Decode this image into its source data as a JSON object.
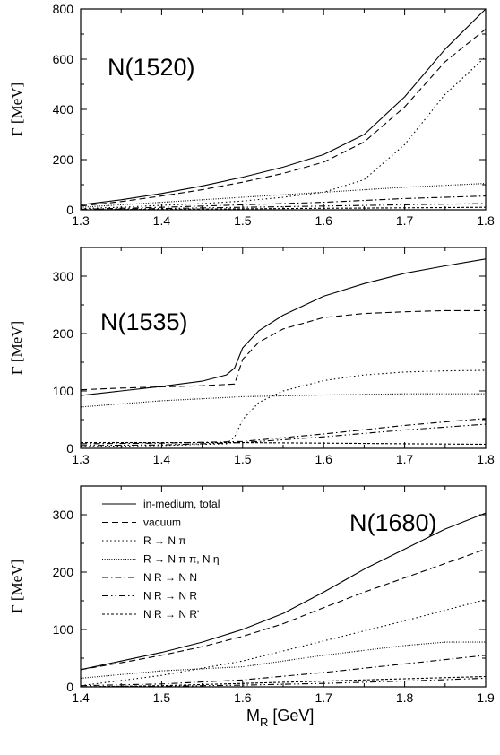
{
  "figure": {
    "xlabel": "M",
    "xlabel_sub": "R",
    "xlabel_unit": " [GeV]"
  },
  "chart_data": [
    {
      "type": "line",
      "title": "N(1520)",
      "ylabel": "Γ [MeV]",
      "xlim": [
        1.3,
        1.8
      ],
      "ylim": [
        0,
        800
      ],
      "xticks": [
        "1.3",
        "1.4",
        "1.5",
        "1.6",
        "1.7",
        "1.8"
      ],
      "yticks": [
        "0",
        "200",
        "400",
        "600",
        "800"
      ],
      "grid": false,
      "series": [
        {
          "style": "solid",
          "x": [
            1.3,
            1.35,
            1.4,
            1.45,
            1.5,
            1.55,
            1.6,
            1.65,
            1.7,
            1.75,
            1.8
          ],
          "y": [
            20,
            40,
            65,
            95,
            130,
            170,
            220,
            300,
            450,
            640,
            800
          ]
        },
        {
          "style": "dash",
          "x": [
            1.3,
            1.35,
            1.4,
            1.45,
            1.5,
            1.55,
            1.6,
            1.65,
            1.7,
            1.75,
            1.8
          ],
          "y": [
            15,
            33,
            55,
            80,
            110,
            145,
            190,
            270,
            410,
            590,
            720
          ]
        },
        {
          "style": "dot",
          "x": [
            1.3,
            1.35,
            1.4,
            1.45,
            1.5,
            1.55,
            1.6,
            1.65,
            1.7,
            1.75,
            1.8
          ],
          "y": [
            5,
            10,
            18,
            25,
            35,
            50,
            70,
            120,
            260,
            460,
            610
          ]
        },
        {
          "style": "densedot",
          "x": [
            1.3,
            1.4,
            1.5,
            1.6,
            1.7,
            1.8
          ],
          "y": [
            10,
            30,
            50,
            70,
            90,
            105
          ]
        },
        {
          "style": "dashdot",
          "x": [
            1.3,
            1.4,
            1.5,
            1.6,
            1.7,
            1.8
          ],
          "y": [
            2,
            10,
            20,
            30,
            45,
            55
          ]
        },
        {
          "style": "dashdotdot",
          "x": [
            1.3,
            1.4,
            1.5,
            1.6,
            1.7,
            1.8
          ],
          "y": [
            1,
            5,
            10,
            15,
            20,
            25
          ]
        },
        {
          "style": "shortdash",
          "x": [
            1.3,
            1.4,
            1.5,
            1.6,
            1.7,
            1.8
          ],
          "y": [
            0,
            2,
            4,
            6,
            8,
            10
          ]
        }
      ]
    },
    {
      "type": "line",
      "title": "N(1535)",
      "ylabel": "Γ [MeV]",
      "xlim": [
        1.3,
        1.8
      ],
      "ylim": [
        0,
        350
      ],
      "xticks": [
        "1.3",
        "1.4",
        "1.5",
        "1.6",
        "1.7",
        "1.8"
      ],
      "yticks": [
        "0",
        "100",
        "200",
        "300"
      ],
      "grid": false,
      "series": [
        {
          "style": "solid",
          "x": [
            1.3,
            1.35,
            1.4,
            1.45,
            1.48,
            1.49,
            1.5,
            1.52,
            1.55,
            1.6,
            1.65,
            1.7,
            1.75,
            1.8
          ],
          "y": [
            92,
            100,
            108,
            117,
            128,
            140,
            175,
            205,
            232,
            265,
            287,
            305,
            318,
            330
          ]
        },
        {
          "style": "dash",
          "x": [
            1.3,
            1.35,
            1.4,
            1.45,
            1.49,
            1.5,
            1.52,
            1.55,
            1.6,
            1.65,
            1.7,
            1.75,
            1.8
          ],
          "y": [
            102,
            105,
            107,
            109,
            112,
            155,
            185,
            208,
            228,
            235,
            238,
            240,
            240
          ]
        },
        {
          "style": "densedot",
          "x": [
            1.3,
            1.4,
            1.5,
            1.6,
            1.7,
            1.8
          ],
          "y": [
            72,
            83,
            90,
            93,
            95,
            95
          ]
        },
        {
          "style": "dot",
          "x": [
            1.3,
            1.4,
            1.48,
            1.49,
            1.5,
            1.52,
            1.55,
            1.6,
            1.65,
            1.7,
            1.75,
            1.8
          ],
          "y": [
            3,
            5,
            8,
            20,
            50,
            80,
            100,
            118,
            128,
            133,
            135,
            136
          ]
        },
        {
          "style": "dashdot",
          "x": [
            1.3,
            1.4,
            1.5,
            1.6,
            1.7,
            1.8
          ],
          "y": [
            8,
            9,
            12,
            25,
            40,
            52
          ]
        },
        {
          "style": "dashdotdot",
          "x": [
            1.3,
            1.4,
            1.5,
            1.6,
            1.7,
            1.8
          ],
          "y": [
            5,
            6,
            10,
            20,
            32,
            42
          ]
        },
        {
          "style": "shortdash",
          "x": [
            1.3,
            1.4,
            1.5,
            1.6,
            1.7,
            1.8
          ],
          "y": [
            10,
            10,
            10,
            9,
            8,
            7
          ]
        }
      ]
    },
    {
      "type": "line",
      "title": "N(1680)",
      "ylabel": "Γ [MeV]",
      "xlim": [
        1.4,
        1.9
      ],
      "ylim": [
        0,
        350
      ],
      "xticks": [
        "1.4",
        "1.5",
        "1.6",
        "1.7",
        "1.8",
        "1.9"
      ],
      "yticks": [
        "0",
        "100",
        "200",
        "300"
      ],
      "grid": false,
      "legend_position": "top-left",
      "legend": [
        {
          "label": "in-medium, total",
          "style": "solid"
        },
        {
          "label": "vacuum",
          "style": "dash"
        },
        {
          "label": "R → N π",
          "style": "dot"
        },
        {
          "label": "R → N π π, N η",
          "style": "densedot"
        },
        {
          "label": "N R → N N",
          "style": "dashdot"
        },
        {
          "label": "N R → N R",
          "style": "dashdotdot"
        },
        {
          "label": "N R → N R'",
          "style": "shortdash"
        }
      ],
      "series": [
        {
          "name": "in-medium, total",
          "style": "solid",
          "x": [
            1.4,
            1.45,
            1.5,
            1.55,
            1.6,
            1.65,
            1.7,
            1.75,
            1.8,
            1.85,
            1.9
          ],
          "y": [
            30,
            45,
            60,
            78,
            100,
            128,
            165,
            205,
            240,
            275,
            303
          ]
        },
        {
          "name": "vacuum",
          "style": "dash",
          "x": [
            1.4,
            1.45,
            1.5,
            1.55,
            1.6,
            1.65,
            1.7,
            1.75,
            1.8,
            1.85,
            1.9
          ],
          "y": [
            30,
            42,
            55,
            70,
            88,
            110,
            138,
            165,
            190,
            215,
            240
          ]
        },
        {
          "name": "R → N π",
          "style": "dot",
          "x": [
            1.4,
            1.5,
            1.6,
            1.7,
            1.8,
            1.9
          ],
          "y": [
            2,
            20,
            45,
            80,
            115,
            152
          ]
        },
        {
          "name": "R → N π π, N η",
          "style": "densedot",
          "x": [
            1.4,
            1.5,
            1.6,
            1.7,
            1.8,
            1.85,
            1.9
          ],
          "y": [
            15,
            28,
            35,
            55,
            72,
            78,
            78
          ]
        },
        {
          "name": "N R → N N",
          "style": "dashdot",
          "x": [
            1.4,
            1.5,
            1.6,
            1.7,
            1.8,
            1.9
          ],
          "y": [
            2,
            5,
            12,
            25,
            40,
            55
          ]
        },
        {
          "name": "N R → N R",
          "style": "dashdotdot",
          "x": [
            1.4,
            1.5,
            1.6,
            1.7,
            1.8,
            1.9
          ],
          "y": [
            0,
            1,
            3,
            6,
            10,
            15
          ]
        },
        {
          "name": "N R → N R'",
          "style": "shortdash",
          "x": [
            1.4,
            1.5,
            1.6,
            1.7,
            1.8,
            1.9
          ],
          "y": [
            0,
            2,
            6,
            10,
            14,
            18
          ]
        }
      ]
    }
  ]
}
